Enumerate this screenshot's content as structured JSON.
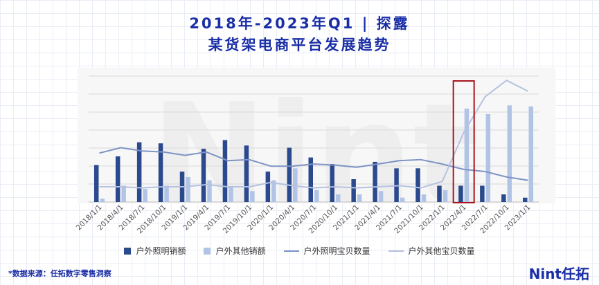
{
  "header": {
    "title_line1": "2018年-2023年Q1 | 探露",
    "title_line2": "某货架电商平台发展趋势"
  },
  "footer": {
    "source": "*数据来源：任拓数字零售洞察",
    "brand": "Nint任拓"
  },
  "watermark": "Nint",
  "colors": {
    "dark_bar": "#2b4a8e",
    "light_bar": "#b1c4e6",
    "dark_line": "#7e93c6",
    "light_line": "#b5c1e1",
    "highlight_box": "#a8141c",
    "title": "#1a2ea6"
  },
  "chart_data": {
    "type": "bar",
    "title": "",
    "xlabel": "",
    "ylabel": "",
    "ylim": [
      0,
      100
    ],
    "y_axis_visible": false,
    "grid": "horizontal",
    "legend_position": "bottom",
    "categories": [
      "2018/1/1",
      "2018/4/1",
      "2018/7/1",
      "2018/10/1",
      "2019/1/1",
      "2019/4/1",
      "2019/7/1",
      "2019/10/1",
      "2020/1/1",
      "2020/4/1",
      "2020/7/1",
      "2020/10/1",
      "2021/1/1",
      "2021/4/1",
      "2021/7/1",
      "2021/10/1",
      "2022/1/1",
      "2022/4/1",
      "2022/7/1",
      "2022/10/1",
      "2023/1/1"
    ],
    "highlight_category": "2022/4/1",
    "series": [
      {
        "name": "户外照明销额",
        "kind": "bar",
        "color": "#2b4a8e",
        "values": [
          34,
          42,
          55,
          54,
          28,
          49,
          57,
          52,
          28,
          50,
          41,
          35,
          21,
          37,
          31,
          31,
          15,
          15,
          15,
          7,
          4
        ]
      },
      {
        "name": "户外其他销额",
        "kind": "bar",
        "color": "#b1c4e6",
        "values": [
          3,
          15,
          12,
          15,
          23,
          20,
          14,
          10,
          20,
          31,
          11,
          7,
          7,
          10,
          4,
          7,
          11,
          86,
          81,
          89,
          88
        ]
      },
      {
        "name": "户外照明宝贝数量",
        "kind": "line",
        "color": "#7e93c6",
        "values": [
          45,
          50,
          47,
          46,
          43,
          46,
          38,
          39,
          33,
          33,
          35,
          34,
          32,
          35,
          38,
          39,
          35,
          30,
          28,
          23,
          20
        ]
      },
      {
        "name": "户外其他宝贝数量",
        "kind": "line",
        "color": "#b5c1e1",
        "values": [
          14,
          14,
          13,
          14,
          14,
          16,
          14,
          14,
          18,
          15,
          13,
          14,
          13,
          14,
          15,
          13,
          19,
          64,
          97,
          112,
          102
        ]
      }
    ]
  }
}
